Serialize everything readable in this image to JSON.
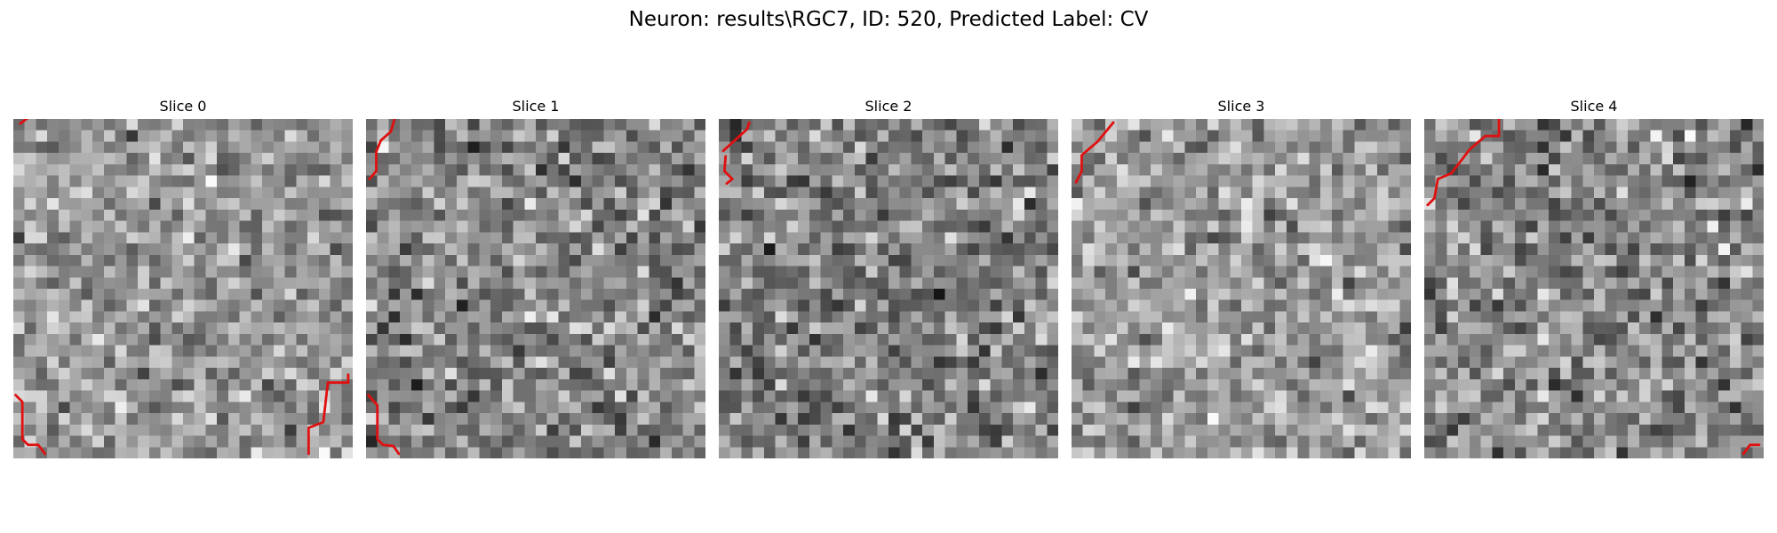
{
  "figure": {
    "suptitle": "Neuron: results\\RGC7, ID: 520, Predicted Label: CV"
  },
  "grid_size": 30,
  "colors": {
    "background": "#ffffff",
    "text": "#000000",
    "contour": "#e01010"
  },
  "panels": [
    {
      "title": "Slice 0",
      "seed": 11,
      "mean": 150,
      "spread": 70,
      "contours": [
        [
          [
            0.6,
            0.4
          ],
          [
            2.1,
            -0.7
          ]
        ],
        [
          [
            0.2,
            24.4
          ],
          [
            0.8,
            25
          ],
          [
            0.8,
            28.3
          ],
          [
            1.3,
            28.8
          ],
          [
            2.2,
            28.8
          ],
          [
            2.8,
            29.6
          ]
        ],
        [
          [
            26.1,
            29.6
          ],
          [
            26.1,
            27.3
          ],
          [
            27.4,
            26.8
          ],
          [
            27.8,
            23.3
          ],
          [
            29.6,
            23.3
          ],
          [
            29.6,
            22.6
          ]
        ]
      ]
    },
    {
      "title": "Slice 1",
      "seed": 23,
      "mean": 135,
      "spread": 80,
      "contours": [
        [
          [
            2.6,
            -0.3
          ],
          [
            2.2,
            1.1
          ],
          [
            1.3,
            1.9
          ],
          [
            0.9,
            2.9
          ],
          [
            0.9,
            4.6
          ],
          [
            0.3,
            5.3
          ]
        ],
        [
          [
            0.2,
            24.4
          ],
          [
            1.0,
            25.3
          ],
          [
            1.0,
            28.3
          ],
          [
            1.5,
            28.8
          ],
          [
            2.4,
            28.9
          ],
          [
            2.9,
            29.6
          ]
        ]
      ]
    },
    {
      "title": "Slice 2",
      "seed": 37,
      "mean": 130,
      "spread": 80,
      "contours": [
        [
          [
            0.4,
            2.8
          ],
          [
            2.5,
            0.9
          ],
          [
            2.7,
            0.3
          ]
        ],
        [
          [
            0.6,
            3.3
          ],
          [
            0.5,
            4.6
          ],
          [
            1.2,
            5.3
          ],
          [
            0.7,
            5.7
          ]
        ]
      ]
    },
    {
      "title": "Slice 3",
      "seed": 41,
      "mean": 155,
      "spread": 70,
      "contours": [
        [
          [
            0.4,
            5.6
          ],
          [
            0.9,
            4.6
          ],
          [
            0.9,
            3.2
          ],
          [
            2.3,
            2.0
          ],
          [
            3.7,
            0.3
          ]
        ]
      ]
    },
    {
      "title": "Slice 4",
      "seed": 59,
      "mean": 140,
      "spread": 80,
      "contours": [
        [
          [
            6.6,
            -0.3
          ],
          [
            6.6,
            1.5
          ],
          [
            5.4,
            1.5
          ],
          [
            4.0,
            2.7
          ],
          [
            2.4,
            4.8
          ],
          [
            1.2,
            5.3
          ],
          [
            0.9,
            7.0
          ],
          [
            0.3,
            7.6
          ]
        ],
        [
          [
            28.2,
            29.6
          ],
          [
            28.8,
            28.8
          ],
          [
            29.6,
            28.8
          ]
        ]
      ]
    }
  ]
}
